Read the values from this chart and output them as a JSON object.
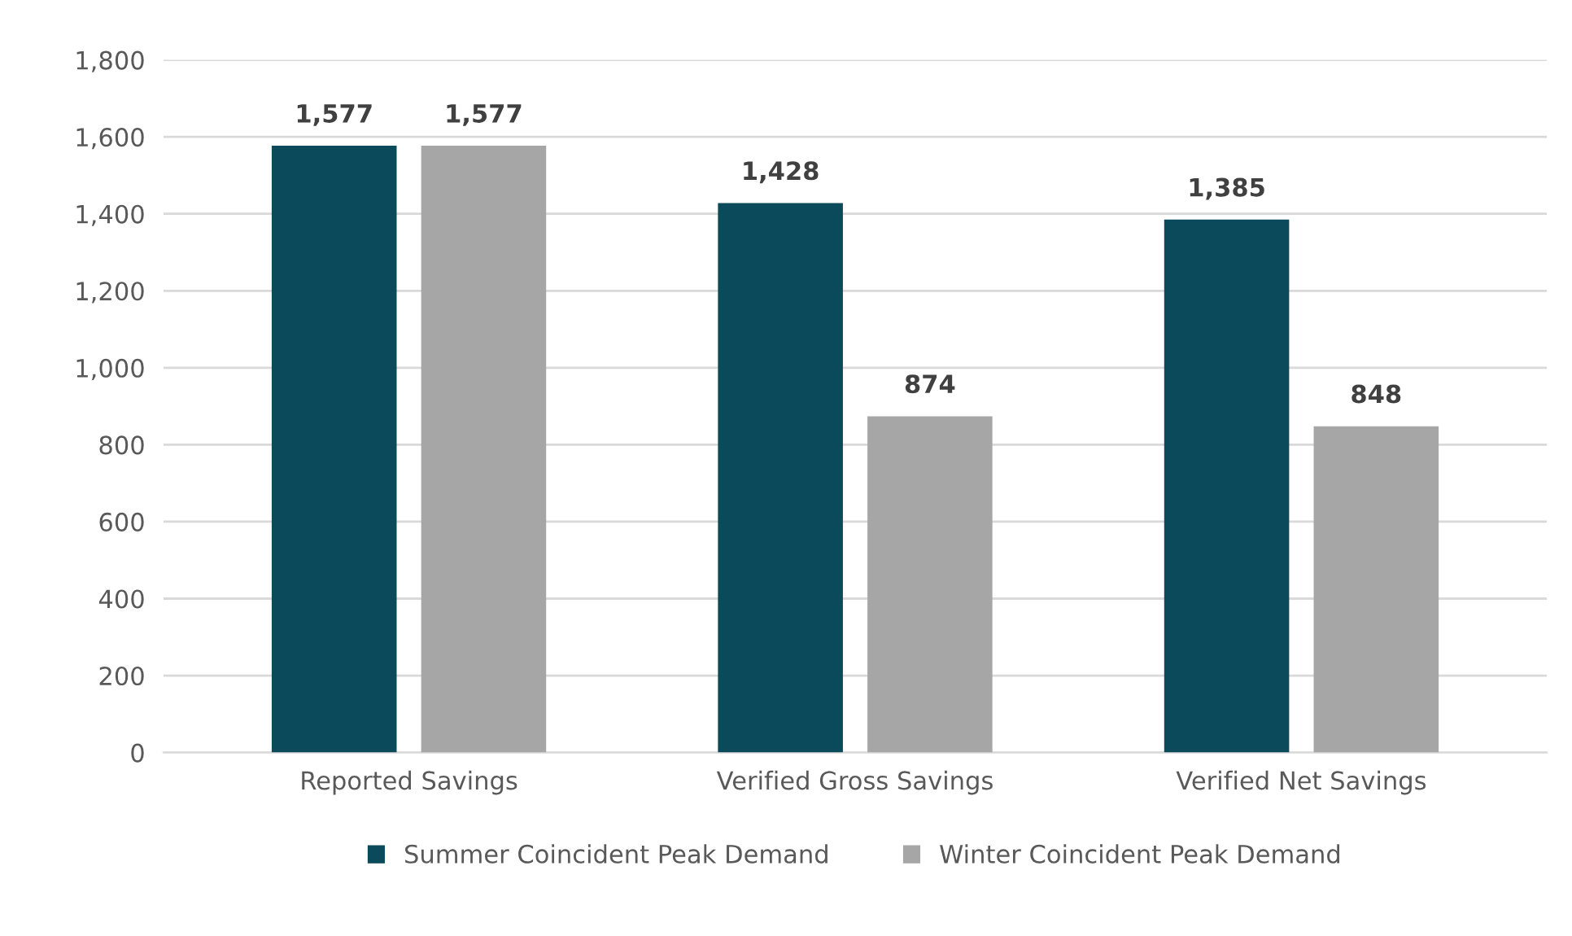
{
  "chart_data": {
    "type": "bar",
    "categories": [
      "Reported Savings",
      "Verified Gross Savings",
      "Verified Net Savings"
    ],
    "series": [
      {
        "name": "Summer Coincident Peak Demand",
        "color": "#0b4a5a",
        "values": [
          1577,
          1428,
          1385
        ]
      },
      {
        "name": "Winter Coincident Peak Demand",
        "color": "#a6a6a6",
        "values": [
          1577,
          874,
          848
        ]
      }
    ],
    "value_labels": [
      [
        "1,577",
        "1,428",
        "1,385"
      ],
      [
        "1,577",
        "874",
        "848"
      ]
    ],
    "ylim": [
      0,
      1800
    ],
    "yticks": [
      {
        "value": 0,
        "label": "0"
      },
      {
        "value": 200,
        "label": "200"
      },
      {
        "value": 400,
        "label": "400"
      },
      {
        "value": 600,
        "label": "600"
      },
      {
        "value": 800,
        "label": "800"
      },
      {
        "value": 1000,
        "label": "1,000"
      },
      {
        "value": 1200,
        "label": "1,200"
      },
      {
        "value": 1400,
        "label": "1,400"
      },
      {
        "value": 1600,
        "label": "1,600"
      },
      {
        "value": 1800,
        "label": "1,800"
      }
    ],
    "grid": "y",
    "legend": "bottom"
  }
}
